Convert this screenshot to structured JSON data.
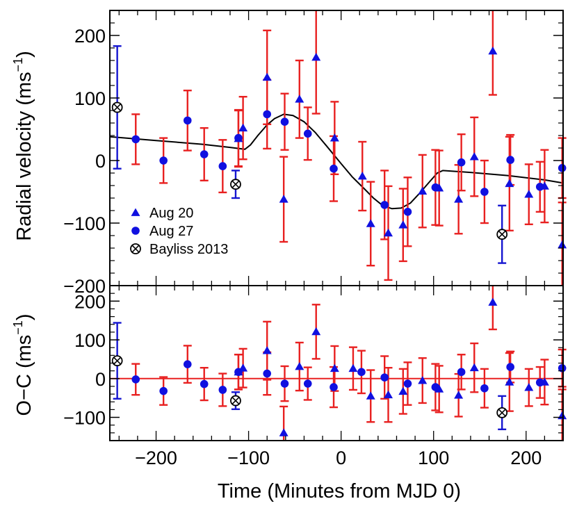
{
  "colors": {
    "aug20": "#1010e0",
    "aug27": "#1010e0",
    "bayliss": "#000000",
    "error_red": "#e82020",
    "error_blue": "#1515d0",
    "model": "#000000",
    "zero_line": "#e82020"
  },
  "chart_data": [
    {
      "type": "scatter",
      "panel": "top",
      "xlim": [
        -250,
        240
      ],
      "ylim": [
        -200,
        240
      ],
      "ylabel_text": "Radial velocity (ms",
      "ylabel_sup": "−1",
      "ylabel_end": ")",
      "yticks": [
        -200,
        -100,
        0,
        100,
        200
      ],
      "ytick_labels": [
        "−200",
        "−100",
        "0",
        "100",
        "200"
      ],
      "legend": [
        {
          "name": "Aug 20",
          "marker": "triangle"
        },
        {
          "name": "Aug 27",
          "marker": "circle"
        },
        {
          "name": "Bayliss 2013",
          "marker": "otimes"
        }
      ],
      "series": [
        {
          "name": "Aug 20",
          "marker": "triangle",
          "points": [
            {
              "x": -111,
              "y": 35,
              "err": 45
            },
            {
              "x": -106,
              "y": 52,
              "err": 50
            },
            {
              "x": -80,
              "y": 133,
              "err": 75
            },
            {
              "x": -62,
              "y": -62,
              "err": 68
            },
            {
              "x": -45,
              "y": 98,
              "err": 62
            },
            {
              "x": -27,
              "y": 165,
              "err": 90
            },
            {
              "x": -7,
              "y": 36,
              "err": 58
            },
            {
              "x": 23,
              "y": -25,
              "err": 55
            },
            {
              "x": 32,
              "y": -101,
              "err": 67
            },
            {
              "x": 51,
              "y": -116,
              "err": 75
            },
            {
              "x": 67,
              "y": -103,
              "err": 58
            },
            {
              "x": 88,
              "y": -49,
              "err": 58
            },
            {
              "x": 106,
              "y": -44,
              "err": 60
            },
            {
              "x": 127,
              "y": -62,
              "err": 55
            },
            {
              "x": 144,
              "y": 6,
              "err": 63
            },
            {
              "x": 164,
              "y": 175,
              "err": 70
            },
            {
              "x": 182,
              "y": -37,
              "err": 75
            },
            {
              "x": 203,
              "y": -54,
              "err": 48
            },
            {
              "x": 220,
              "y": -41,
              "err": 58
            },
            {
              "x": 239,
              "y": -135,
              "err": 68
            }
          ]
        },
        {
          "name": "Aug 27",
          "marker": "circle",
          "points": [
            {
              "x": -222,
              "y": 34,
              "err": 40
            },
            {
              "x": -192,
              "y": 0,
              "err": 36
            },
            {
              "x": -166,
              "y": 64,
              "err": 48
            },
            {
              "x": -148,
              "y": 10,
              "err": 42
            },
            {
              "x": -128,
              "y": -9,
              "err": 42
            },
            {
              "x": -111,
              "y": 36,
              "err": 45
            },
            {
              "x": -80,
              "y": 74,
              "err": 55
            },
            {
              "x": -61,
              "y": 62,
              "err": 45
            },
            {
              "x": -36,
              "y": 43,
              "err": 42
            },
            {
              "x": -8,
              "y": -13,
              "err": 52
            },
            {
              "x": 47,
              "y": -71,
              "err": 55
            },
            {
              "x": 72,
              "y": -82,
              "err": 55
            },
            {
              "x": 102,
              "y": -43,
              "err": 60
            },
            {
              "x": 130,
              "y": -3,
              "err": 45
            },
            {
              "x": 155,
              "y": -50,
              "err": 50
            },
            {
              "x": 183,
              "y": 1,
              "err": 40
            },
            {
              "x": 215,
              "y": -42,
              "err": 40
            },
            {
              "x": 239,
              "y": -12,
              "err": 48
            }
          ]
        },
        {
          "name": "Bayliss 2013",
          "marker": "otimes",
          "points": [
            {
              "x": -242,
              "y": 85,
              "err": 98
            },
            {
              "x": -114,
              "y": -38,
              "err": 22
            },
            {
              "x": 174,
              "y": -118,
              "err": 46
            }
          ]
        }
      ],
      "model_curve": [
        [
          -250,
          38
        ],
        [
          -200,
          32
        ],
        [
          -150,
          26
        ],
        [
          -120,
          21
        ],
        [
          -104,
          18
        ],
        [
          -98,
          25
        ],
        [
          -90,
          40
        ],
        [
          -80,
          57
        ],
        [
          -72,
          67
        ],
        [
          -62,
          74
        ],
        [
          -52,
          72
        ],
        [
          -40,
          62
        ],
        [
          -28,
          45
        ],
        [
          -15,
          22
        ],
        [
          0,
          -5
        ],
        [
          12,
          -26
        ],
        [
          25,
          -45
        ],
        [
          35,
          -60
        ],
        [
          45,
          -72
        ],
        [
          55,
          -77
        ],
        [
          65,
          -76
        ],
        [
          75,
          -68
        ],
        [
          85,
          -52
        ],
        [
          95,
          -35
        ],
        [
          104,
          -20
        ],
        [
          110,
          -16
        ],
        [
          140,
          -19
        ],
        [
          180,
          -24
        ],
        [
          220,
          -31
        ],
        [
          240,
          -36
        ]
      ]
    },
    {
      "type": "scatter",
      "panel": "bottom",
      "xlim": [
        -250,
        240
      ],
      "ylim": [
        -160,
        240
      ],
      "xlabel": "Time (Minutes from MJD 0)",
      "ylabel_text": "O−C (ms",
      "ylabel_sup": "−1",
      "ylabel_end": ")",
      "xticks": [
        -200,
        -100,
        0,
        100,
        200
      ],
      "xtick_labels": [
        "−200",
        "−100",
        "0",
        "100",
        "200"
      ],
      "yticks": [
        -100,
        0,
        100,
        200
      ],
      "ytick_labels": [
        "−100",
        "0",
        "100",
        "200"
      ],
      "zero_line": 0,
      "series": [
        {
          "name": "Aug 20",
          "marker": "triangle",
          "points": [
            {
              "x": -111,
              "y": 17,
              "err": 45
            },
            {
              "x": -106,
              "y": 27,
              "err": 50
            },
            {
              "x": -80,
              "y": 72,
              "err": 75
            },
            {
              "x": -62,
              "y": -140,
              "err": 68
            },
            {
              "x": -45,
              "y": 31,
              "err": 62
            },
            {
              "x": -27,
              "y": 121,
              "err": 70
            },
            {
              "x": -7,
              "y": 26,
              "err": 58
            },
            {
              "x": 13,
              "y": 26,
              "err": 55
            },
            {
              "x": 32,
              "y": -45,
              "err": 67
            },
            {
              "x": 51,
              "y": -42,
              "err": 70
            },
            {
              "x": 67,
              "y": -33,
              "err": 58
            },
            {
              "x": 88,
              "y": -5,
              "err": 58
            },
            {
              "x": 106,
              "y": -27,
              "err": 60
            },
            {
              "x": 127,
              "y": -43,
              "err": 55
            },
            {
              "x": 144,
              "y": 28,
              "err": 63
            },
            {
              "x": 164,
              "y": 197,
              "err": 70
            },
            {
              "x": 182,
              "y": -9,
              "err": 75
            },
            {
              "x": 203,
              "y": -23,
              "err": 48
            },
            {
              "x": 220,
              "y": -9,
              "err": 58
            },
            {
              "x": 239,
              "y": -96,
              "err": 68
            }
          ]
        },
        {
          "name": "Aug 27",
          "marker": "circle",
          "points": [
            {
              "x": -222,
              "y": -2,
              "err": 40
            },
            {
              "x": -192,
              "y": -32,
              "err": 36
            },
            {
              "x": -166,
              "y": 37,
              "err": 48
            },
            {
              "x": -148,
              "y": -14,
              "err": 42
            },
            {
              "x": -128,
              "y": -29,
              "err": 42
            },
            {
              "x": -111,
              "y": 17,
              "err": 45
            },
            {
              "x": -80,
              "y": 13,
              "err": 55
            },
            {
              "x": -61,
              "y": -13,
              "err": 45
            },
            {
              "x": -36,
              "y": -13,
              "err": 42
            },
            {
              "x": -8,
              "y": -22,
              "err": 52
            },
            {
              "x": 22,
              "y": 17,
              "err": 55
            },
            {
              "x": 47,
              "y": 3,
              "err": 55
            },
            {
              "x": 72,
              "y": -13,
              "err": 55
            },
            {
              "x": 102,
              "y": -22,
              "err": 60
            },
            {
              "x": 130,
              "y": 17,
              "err": 45
            },
            {
              "x": 155,
              "y": -25,
              "err": 50
            },
            {
              "x": 183,
              "y": 30,
              "err": 40
            },
            {
              "x": 215,
              "y": -10,
              "err": 40
            },
            {
              "x": 239,
              "y": 27,
              "err": 48
            }
          ]
        },
        {
          "name": "Bayliss 2013",
          "marker": "otimes",
          "points": [
            {
              "x": -242,
              "y": 46,
              "err": 98
            },
            {
              "x": -114,
              "y": -57,
              "err": 22
            },
            {
              "x": 174,
              "y": -88,
              "err": 43
            }
          ]
        }
      ]
    }
  ]
}
